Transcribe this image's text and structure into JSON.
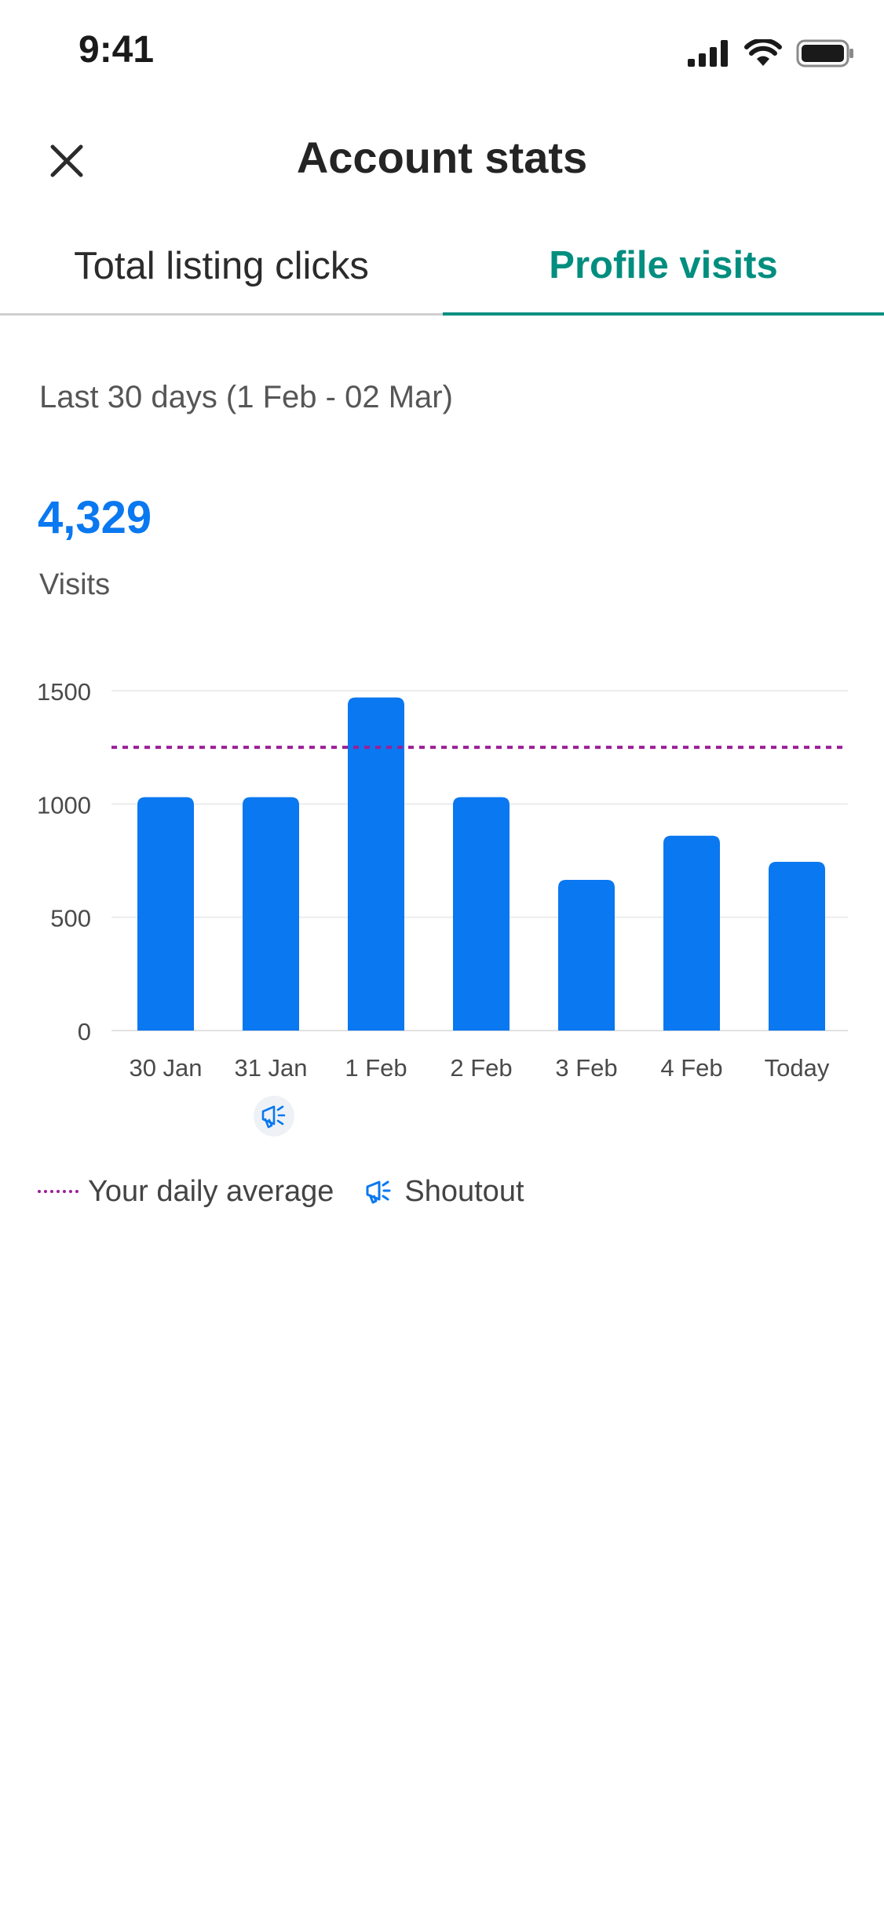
{
  "status_bar": {
    "time": "9:41"
  },
  "header": {
    "title": "Account stats"
  },
  "tabs": [
    {
      "label": "Total listing clicks",
      "active": false
    },
    {
      "label": "Profile visits",
      "active": true
    }
  ],
  "summary": {
    "range": "Last 30 days (1 Feb - 02 Mar)",
    "total": "4,329",
    "total_label": "Visits"
  },
  "colors": {
    "accent": "#008e7f",
    "bar": "#0a78f0",
    "average_line": "#9b1f96"
  },
  "chart_data": {
    "type": "bar",
    "categories": [
      "30 Jan",
      "31 Jan",
      "1 Feb",
      "2 Feb",
      "3 Feb",
      "4 Feb",
      "Today"
    ],
    "values": [
      1030,
      1030,
      1470,
      1030,
      665,
      860,
      745
    ],
    "daily_average": 1250,
    "ylim": [
      0,
      1500
    ],
    "yticks": [
      "0",
      "500",
      "1000",
      "1500"
    ],
    "grid": true,
    "shoutout_day": "31 Jan"
  },
  "legend": {
    "average_label": "Your daily average",
    "shoutout_label": "Shoutout"
  },
  "icons": {
    "close": "close-icon",
    "shoutout": "megaphone-icon"
  }
}
